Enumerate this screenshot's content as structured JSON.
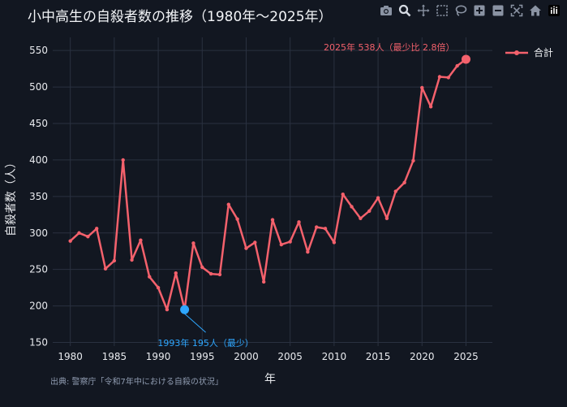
{
  "chart_data": {
    "type": "line",
    "title": "小中高生の自殺者数の推移（1980年～2025年）",
    "xlabel": "年",
    "ylabel": "自殺者数（人）",
    "xlim": [
      1978,
      2028
    ],
    "ylim": [
      145,
      568
    ],
    "x_ticks": [
      1980,
      1985,
      1990,
      1995,
      2000,
      2005,
      2010,
      2015,
      2020,
      2025
    ],
    "y_ticks": [
      150,
      200,
      250,
      300,
      350,
      400,
      450,
      500,
      550
    ],
    "grid": true,
    "legend_position": "top-right",
    "series": [
      {
        "name": "合計",
        "color": "#f4616c",
        "x": [
          1980,
          1981,
          1982,
          1983,
          1984,
          1985,
          1986,
          1987,
          1988,
          1989,
          1990,
          1991,
          1992,
          1993,
          1994,
          1995,
          1996,
          1997,
          1998,
          1999,
          2000,
          2001,
          2002,
          2003,
          2004,
          2005,
          2006,
          2007,
          2008,
          2009,
          2010,
          2011,
          2012,
          2013,
          2014,
          2015,
          2016,
          2017,
          2018,
          2019,
          2020,
          2021,
          2022,
          2023,
          2024,
          2025
        ],
        "values": [
          289,
          300,
          295,
          306,
          251,
          262,
          400,
          263,
          290,
          240,
          225,
          195,
          245,
          195,
          286,
          253,
          244,
          243,
          339,
          319,
          279,
          287,
          233,
          318,
          284,
          288,
          315,
          274,
          308,
          306,
          287,
          353,
          336,
          320,
          330,
          348,
          320,
          357,
          369,
          399,
          499,
          473,
          514,
          513,
          529,
          538
        ]
      }
    ],
    "annotations": [
      {
        "text": "2025年 538人（最少比 2.8倍）",
        "x": 2025,
        "y": 538,
        "color": "#f4616c"
      },
      {
        "text": "1993年 195人（最少）",
        "x": 1993,
        "y": 195,
        "color": "#2ea7ff"
      }
    ],
    "source": "出典: 警察庁「令和7年中における自殺の状況」"
  },
  "colors": {
    "background": "#121721",
    "grid": "#2a3140",
    "line": "#f4616c",
    "min_marker": "#2ea7ff",
    "text": "#e6e8ec",
    "source_text": "#8f9bb0"
  },
  "toolbar": {
    "icons": [
      "camera-icon",
      "zoom-icon",
      "pan-icon",
      "box-select-icon",
      "lasso-icon",
      "zoom-in-icon",
      "zoom-out-icon",
      "autoscale-icon",
      "home-icon",
      "plotly-logo-icon"
    ]
  }
}
